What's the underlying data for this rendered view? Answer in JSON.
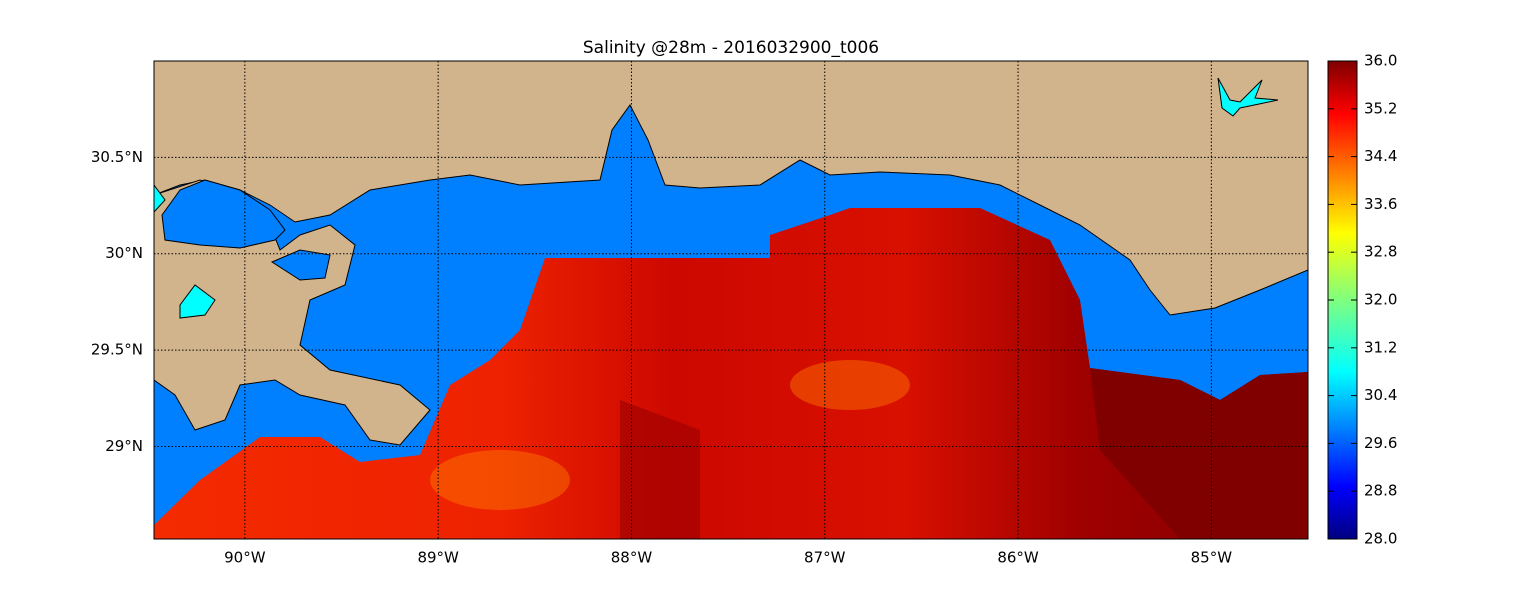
{
  "chart_data": {
    "type": "map",
    "title": "Salinity @28m - 2016032900_t006",
    "xlim": [
      -90.47,
      -84.5
    ],
    "ylim": [
      28.52,
      31.0
    ],
    "xticks": [
      {
        "value": -90,
        "label": "90°W"
      },
      {
        "value": -89,
        "label": "89°W"
      },
      {
        "value": -88,
        "label": "88°W"
      },
      {
        "value": -87,
        "label": "87°W"
      },
      {
        "value": -86,
        "label": "86°W"
      },
      {
        "value": -85,
        "label": "85°W"
      }
    ],
    "yticks": [
      {
        "value": 29,
        "label": "29°N"
      },
      {
        "value": 29.5,
        "label": "29.5°N"
      },
      {
        "value": 30,
        "label": "30°N"
      },
      {
        "value": 30.5,
        "label": "30.5°N"
      }
    ],
    "grid": true,
    "clim": [
      28.0,
      36.0
    ],
    "cticks": [
      {
        "value": 28,
        "label": "28.0"
      },
      {
        "value": 28.8,
        "label": "28.8"
      },
      {
        "value": 29.6,
        "label": "29.6"
      },
      {
        "value": 30.4,
        "label": "30.4"
      },
      {
        "value": 31.2,
        "label": "31.2"
      },
      {
        "value": 32,
        "label": "32.0"
      },
      {
        "value": 32.8,
        "label": "32.8"
      },
      {
        "value": 33.6,
        "label": "33.6"
      },
      {
        "value": 34.4,
        "label": "34.4"
      },
      {
        "value": 35.2,
        "label": "35.2"
      },
      {
        "value": 36,
        "label": "36.0"
      }
    ]
  }
}
